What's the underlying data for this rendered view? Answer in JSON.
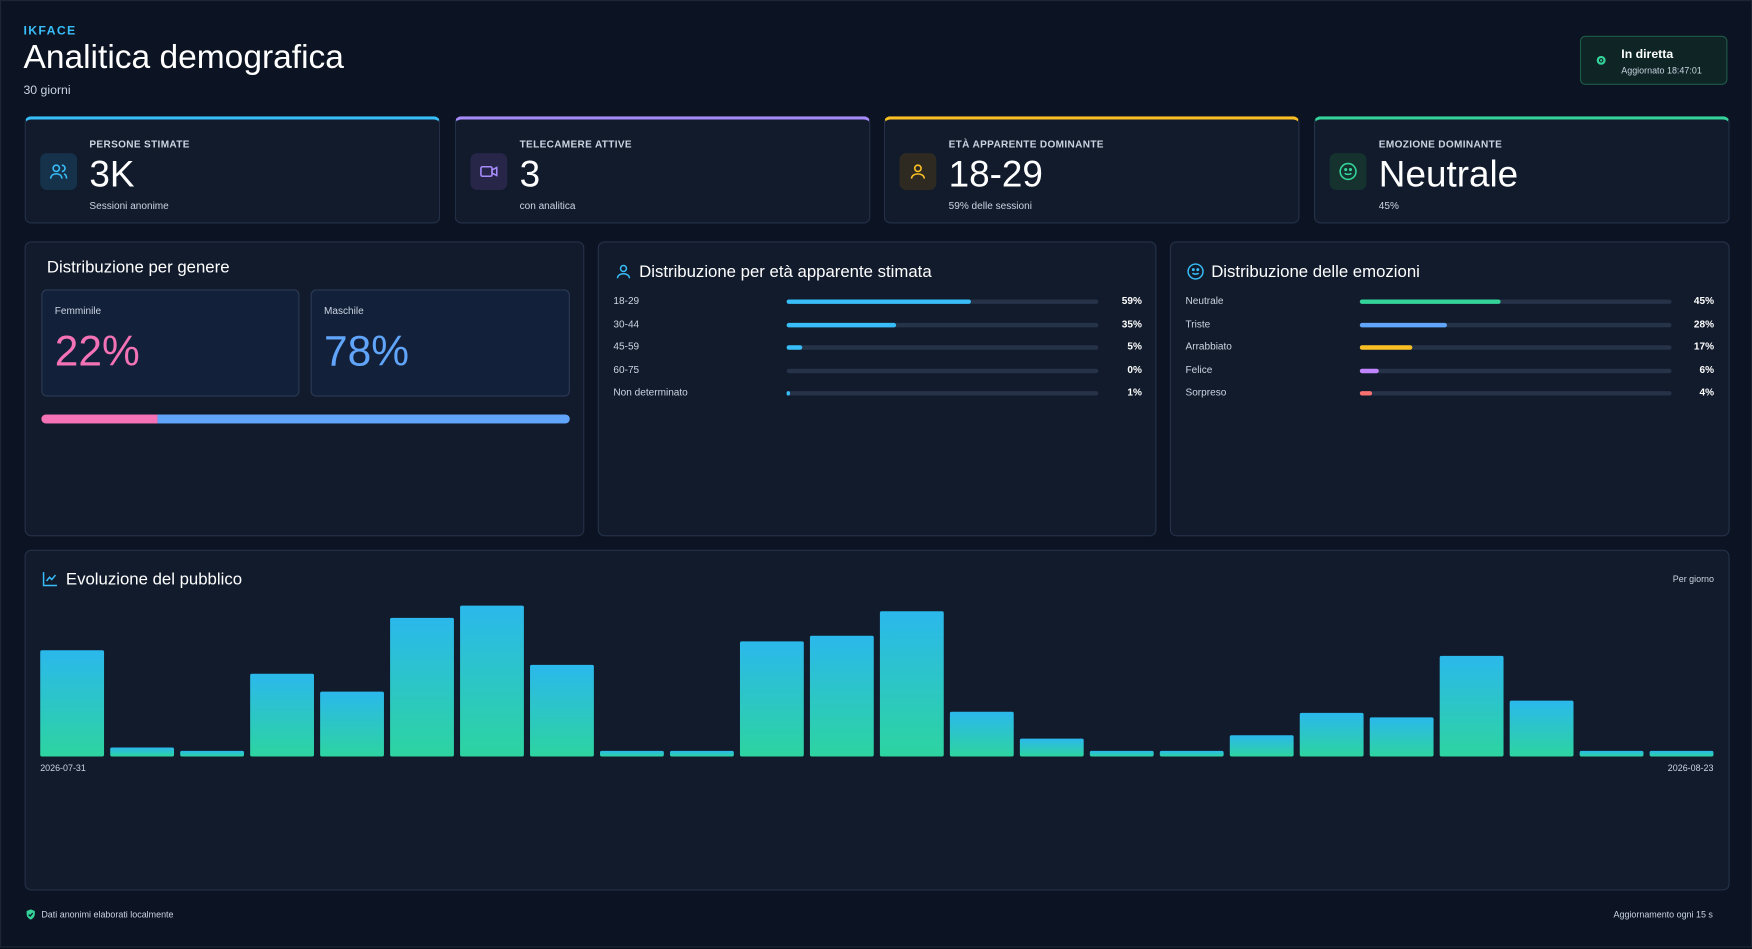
{
  "header": {
    "brand": "IKFACE",
    "title": "Analitica demografica",
    "subtitle": "30 giorni"
  },
  "status": {
    "label": "In diretta",
    "updated": "Aggiornato 18:47:01"
  },
  "kpis": [
    {
      "label": "Persone stimate",
      "value": "3K",
      "sub": "Sessioni anonime"
    },
    {
      "label": "Telecamere attive",
      "value": "3",
      "sub": "con analitica"
    },
    {
      "label": "Età apparente dominante",
      "value": "18-29",
      "sub": "59% delle sessioni"
    },
    {
      "label": "Emozione dominante",
      "value": "Neutrale",
      "sub": "45%"
    }
  ],
  "gender": {
    "title": "Distribuzione per genere",
    "items": [
      {
        "label": "Femminile",
        "value": 22,
        "value_label": "22%",
        "color": "#f472b6"
      },
      {
        "label": "Maschile",
        "value": 78,
        "value_label": "78%",
        "color": "#60a5fa"
      }
    ]
  },
  "age": {
    "title": "Distribuzione per età apparente stimata",
    "color": "#38bdf8",
    "rows": [
      {
        "label": "18-29",
        "value": 59,
        "value_label": "59%"
      },
      {
        "label": "30-44",
        "value": 35,
        "value_label": "35%"
      },
      {
        "label": "45-59",
        "value": 5,
        "value_label": "5%"
      },
      {
        "label": "60-75",
        "value": 0,
        "value_label": "0%"
      },
      {
        "label": "Non determinato",
        "value": 1,
        "value_label": "1%"
      }
    ]
  },
  "emotions": {
    "title": "Distribuzione delle emozioni",
    "rows": [
      {
        "label": "Neutrale",
        "value": 45,
        "value_label": "45%",
        "color": "#34d399"
      },
      {
        "label": "Triste",
        "value": 28,
        "value_label": "28%",
        "color": "#60a5fa"
      },
      {
        "label": "Arrabbiato",
        "value": 17,
        "value_label": "17%",
        "color": "#fbbf24"
      },
      {
        "label": "Felice",
        "value": 6,
        "value_label": "6%",
        "color": "#c084fc"
      },
      {
        "label": "Sorpreso",
        "value": 4,
        "value_label": "4%",
        "color": "#f87171"
      }
    ]
  },
  "chart_data": {
    "type": "bar",
    "title": "Evoluzione del pubblico",
    "subtitle": "Per giorno",
    "categories": [
      "2026-07-31",
      null,
      null,
      null,
      null,
      null,
      null,
      null,
      null,
      null,
      null,
      null,
      null,
      null,
      null,
      null,
      null,
      null,
      null,
      null,
      null,
      null,
      null,
      "2026-08-23"
    ],
    "values": [
      95,
      8,
      5,
      74,
      58,
      124,
      135,
      82,
      5,
      5,
      103,
      108,
      130,
      40,
      16,
      5,
      5,
      19,
      39,
      35,
      90,
      50,
      5,
      5
    ],
    "color": [
      "#2bb8ec",
      "#2dd4a0"
    ]
  },
  "footer": {
    "left": "Dati anonimi elaborati localmente",
    "right": "Aggiornamento ogni 15 s"
  }
}
